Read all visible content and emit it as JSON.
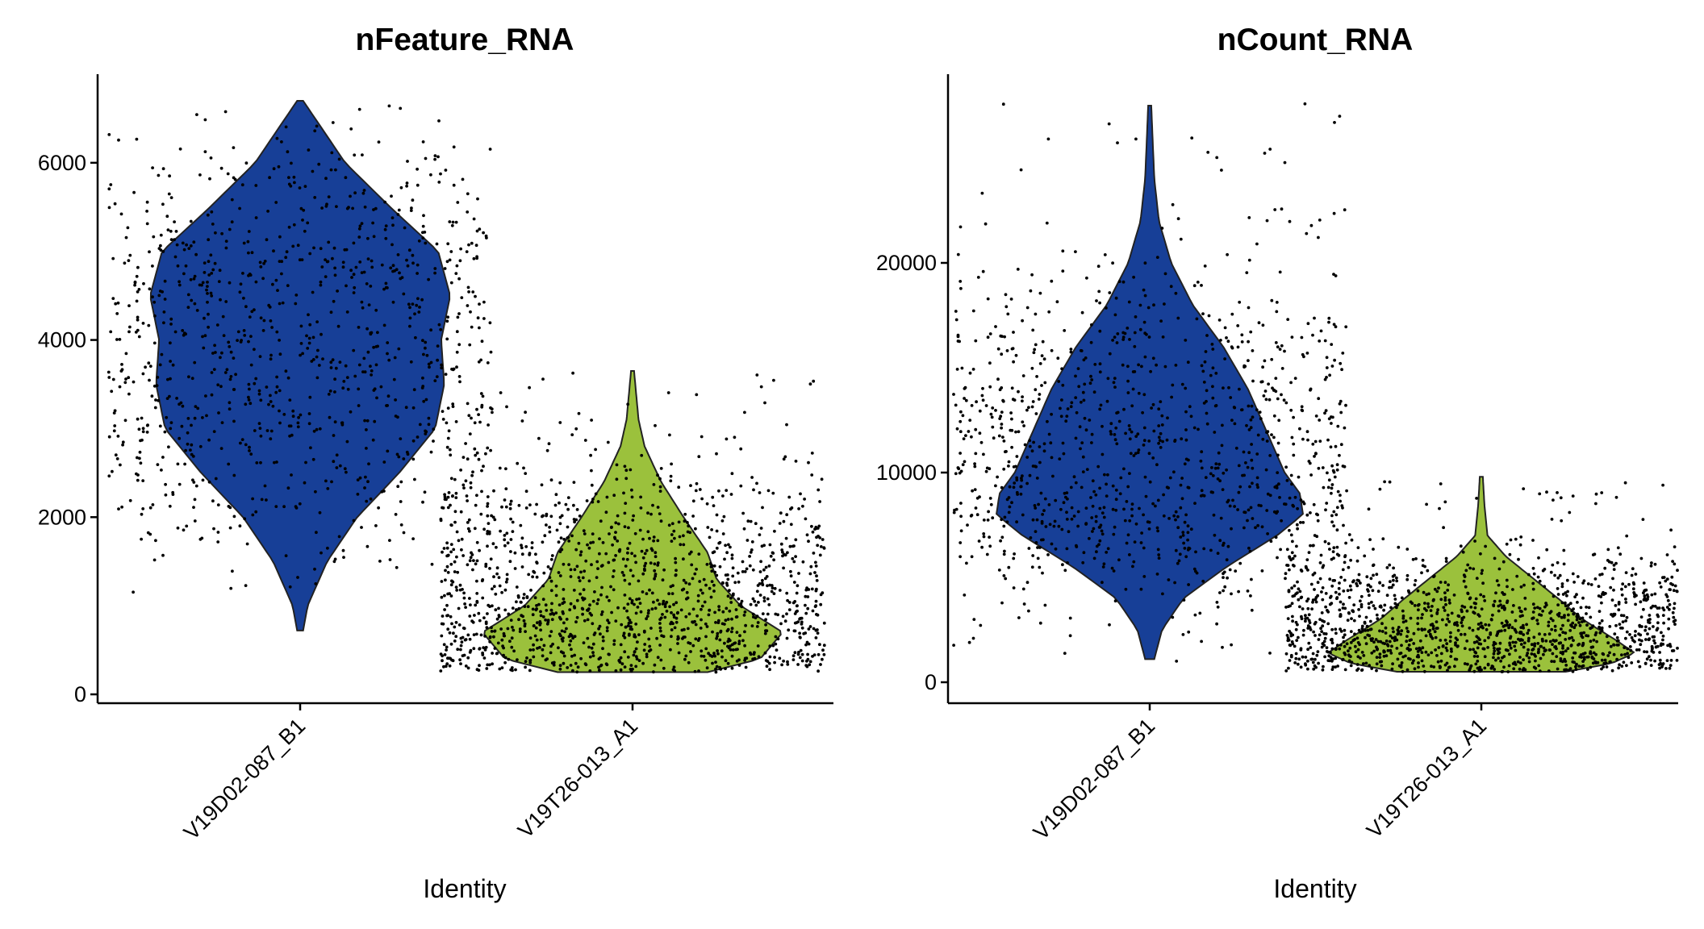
{
  "chart_data": [
    {
      "type": "violin",
      "title": "nFeature_RNA",
      "xlabel": "Identity",
      "ylabel": "",
      "categories": [
        "V19D02-087_B1",
        "V19T26-013_A1"
      ],
      "yticks": [
        0,
        2000,
        4000,
        6000
      ],
      "ylim": [
        -100,
        7000
      ],
      "grid": false,
      "legend": "none",
      "series": [
        {
          "category": "V19D02-087_B1",
          "color": "#173f97",
          "min": 720,
          "max": 6700,
          "density_profile": [
            [
              720,
              0.02
            ],
            [
              1000,
              0.05
            ],
            [
              1500,
              0.18
            ],
            [
              2000,
              0.38
            ],
            [
              2500,
              0.66
            ],
            [
              3000,
              0.9
            ],
            [
              3500,
              0.96
            ],
            [
              4000,
              0.94
            ],
            [
              4500,
              1.0
            ],
            [
              5000,
              0.92
            ],
            [
              5500,
              0.6
            ],
            [
              6000,
              0.3
            ],
            [
              6400,
              0.14
            ],
            [
              6700,
              0.02
            ]
          ],
          "points_range": [
            1150,
            6700
          ],
          "point_count": 1000
        },
        {
          "category": "V19T26-013_A1",
          "color": "#9bc13c",
          "min": 250,
          "max": 3650,
          "density_profile": [
            [
              250,
              0.5
            ],
            [
              400,
              0.85
            ],
            [
              700,
              1.0
            ],
            [
              1000,
              0.72
            ],
            [
              1300,
              0.56
            ],
            [
              1600,
              0.5
            ],
            [
              2000,
              0.34
            ],
            [
              2400,
              0.19
            ],
            [
              2800,
              0.08
            ],
            [
              3100,
              0.04
            ],
            [
              3650,
              0.01
            ]
          ],
          "points_range": [
            250,
            3650
          ],
          "point_count": 1400
        }
      ]
    },
    {
      "type": "violin",
      "title": "nCount_RNA",
      "xlabel": "Identity",
      "ylabel": "",
      "categories": [
        "V19D02-087_B1",
        "V19T26-013_A1"
      ],
      "yticks": [
        0,
        10000,
        20000
      ],
      "ylim": [
        -1000,
        29000
      ],
      "grid": false,
      "legend": "none",
      "series": [
        {
          "category": "V19D02-087_B1",
          "color": "#173f97",
          "min": 1100,
          "max": 27500,
          "density_profile": [
            [
              1100,
              0.03
            ],
            [
              2500,
              0.08
            ],
            [
              4000,
              0.22
            ],
            [
              5500,
              0.5
            ],
            [
              7000,
              0.83
            ],
            [
              8000,
              1.0
            ],
            [
              9000,
              0.98
            ],
            [
              10000,
              0.88
            ],
            [
              12000,
              0.76
            ],
            [
              14000,
              0.64
            ],
            [
              16000,
              0.48
            ],
            [
              18000,
              0.28
            ],
            [
              20000,
              0.14
            ],
            [
              22000,
              0.06
            ],
            [
              24000,
              0.03
            ],
            [
              27500,
              0.01
            ]
          ],
          "points_range": [
            1000,
            27600
          ],
          "point_count": 1100
        },
        {
          "category": "V19T26-013_A1",
          "color": "#9bc13c",
          "min": 500,
          "max": 9800,
          "density_profile": [
            [
              500,
              0.55
            ],
            [
              900,
              0.85
            ],
            [
              1400,
              1.0
            ],
            [
              2000,
              0.88
            ],
            [
              3000,
              0.66
            ],
            [
              4000,
              0.5
            ],
            [
              5000,
              0.33
            ],
            [
              6000,
              0.16
            ],
            [
              7000,
              0.04
            ],
            [
              8500,
              0.02
            ],
            [
              9800,
              0.01
            ]
          ],
          "points_range": [
            500,
            9800
          ],
          "point_count": 1400
        }
      ]
    }
  ]
}
